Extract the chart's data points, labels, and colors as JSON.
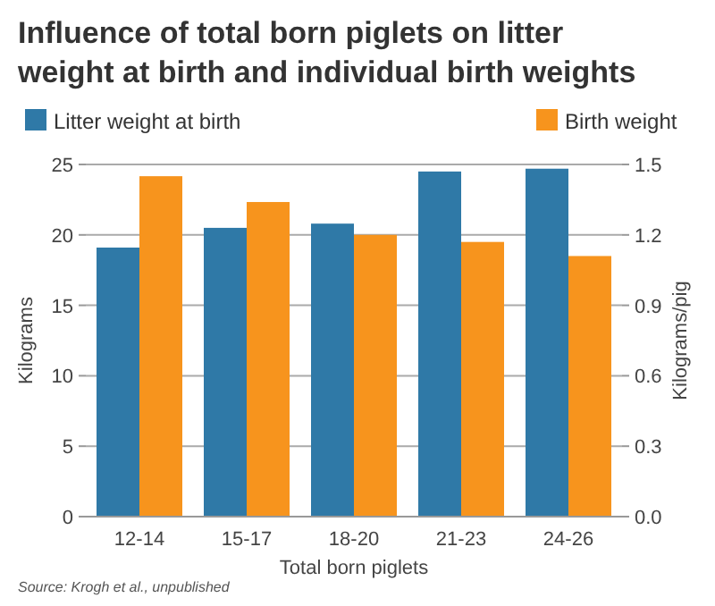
{
  "chart_data": {
    "type": "bar",
    "title": "Influence of total born piglets on litter weight at birth and individual birth weights",
    "xlabel": "Total born piglets",
    "ylabel": "Kilograms",
    "y2label": "Kilograms/pig",
    "categories": [
      "12-14",
      "15-17",
      "18-20",
      "21-23",
      "24-26"
    ],
    "series": [
      {
        "name": "Litter weight at birth",
        "color": "#2f79a7",
        "values": [
          19.1,
          20.5,
          20.8,
          24.5,
          24.7
        ]
      },
      {
        "name": "Birth weight",
        "color": "#f7941d",
        "axis": "y2",
        "values": [
          1.45,
          1.34,
          1.2,
          1.17,
          1.11
        ]
      }
    ],
    "ylim": [
      0,
      25
    ],
    "yticks": [
      0,
      5,
      10,
      15,
      20,
      25
    ],
    "y2lim": [
      0,
      1.5
    ],
    "y2ticks": [
      {
        "value": 0,
        "label": "0.0"
      },
      {
        "value": 0.3,
        "label": "0.3"
      },
      {
        "value": 0.6,
        "label": "0.6"
      },
      {
        "value": 0.9,
        "label": "0.9"
      },
      {
        "value": 1.2,
        "label": "1.2"
      },
      {
        "value": 1.5,
        "label": "1.5"
      }
    ],
    "grid": "y",
    "legend": "top",
    "annotations": [
      "Source: Krogh et al., unpublished"
    ]
  }
}
